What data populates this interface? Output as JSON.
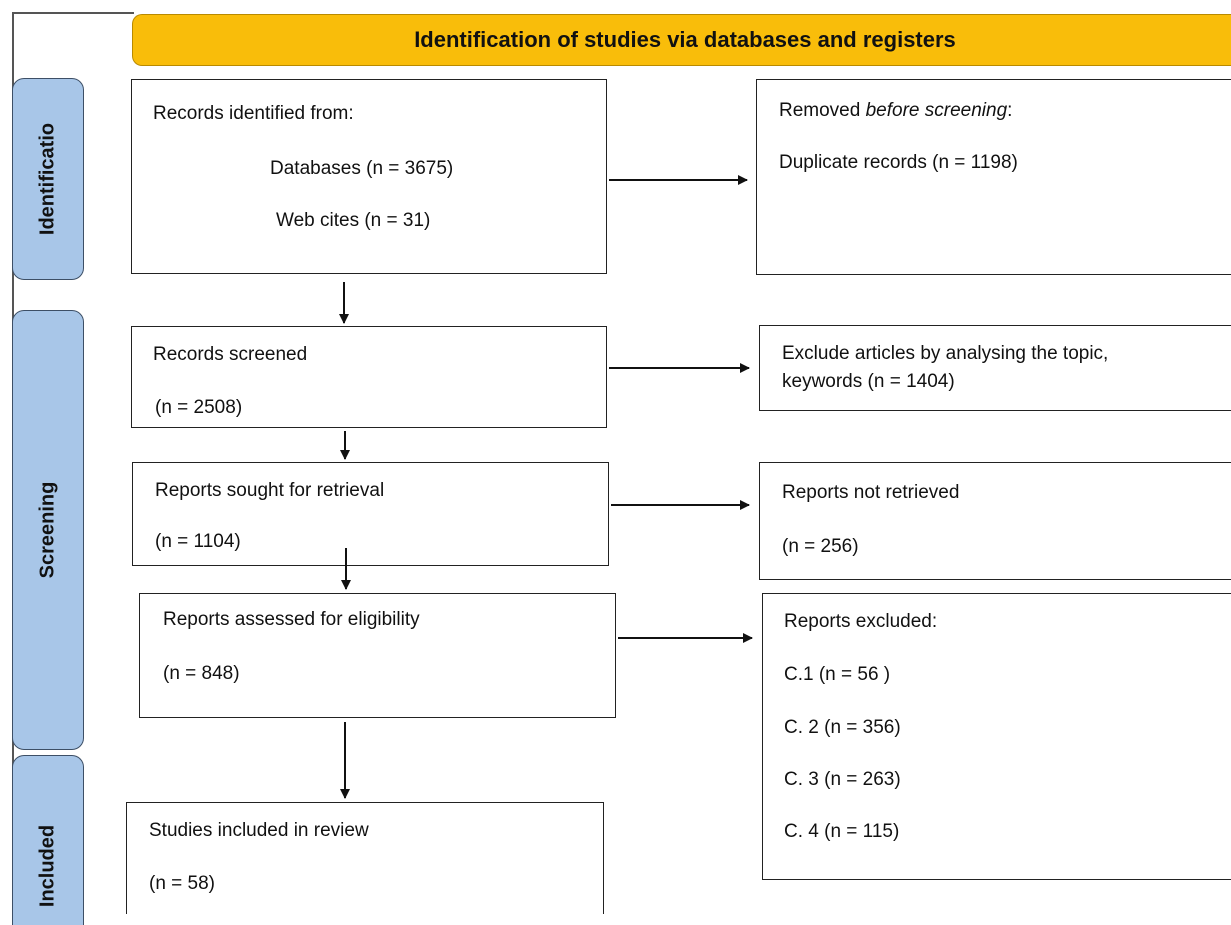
{
  "header": {
    "title": "Identification of studies via databases and registers"
  },
  "phases": {
    "identification": "Identificatio",
    "screening": "Screening",
    "included": "Included"
  },
  "boxes": {
    "records_identified": {
      "heading": "Records identified from:",
      "databases": "Databases (n = 3675)",
      "web": "Web cites (n = 31)"
    },
    "removed": {
      "heading_prefix": "Removed ",
      "heading_italic": "before screening",
      "heading_suffix": ":",
      "duplicates": "Duplicate records (n = 1198)"
    },
    "screened": {
      "heading": "Records screened",
      "count": "(n = 2508)"
    },
    "excluded_topic": {
      "line1": "Exclude articles by analysing the topic,",
      "line2": "keywords (n = 1404)"
    },
    "sought": {
      "heading": "Reports sought for retrieval",
      "count": "(n = 1104)"
    },
    "not_retrieved": {
      "heading": "Reports not retrieved",
      "count": "(n = 256)"
    },
    "assessed": {
      "heading": "Reports assessed for eligibility",
      "count": "(n = 848)"
    },
    "excluded": {
      "heading": "Reports excluded:",
      "c1": "C.1 (n = 56 )",
      "c2": "C. 2 (n = 356)",
      "c3": "C. 3 (n = 263)",
      "c4": "C. 4 (n = 115)"
    },
    "included": {
      "heading": "Studies included in review",
      "count": "(n = 58)"
    }
  },
  "colors": {
    "header": "#f9bd0a",
    "phase": "#a8c6e8",
    "border": "#222222"
  }
}
